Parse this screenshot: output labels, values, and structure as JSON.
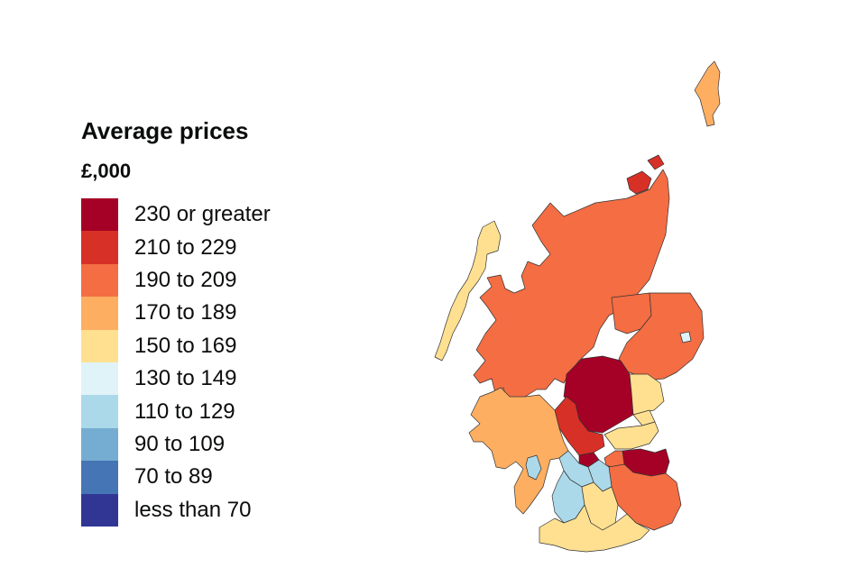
{
  "legend": {
    "title": "Average prices",
    "unit": "£,000",
    "items": [
      {
        "label": "230 or greater",
        "color": "#a50026"
      },
      {
        "label": "210 to 229",
        "color": "#d73027"
      },
      {
        "label": "190 to 209",
        "color": "#f46d43"
      },
      {
        "label": "170 to 189",
        "color": "#fdae61"
      },
      {
        "label": "150 to 169",
        "color": "#fee090"
      },
      {
        "label": "130 to 149",
        "color": "#e0f3f8"
      },
      {
        "label": "110 to 129",
        "color": "#abd9e9"
      },
      {
        "label": "90 to 109",
        "color": "#74add1"
      },
      {
        "label": "70 to 89",
        "color": "#4575b4"
      },
      {
        "label": "less than 70",
        "color": "#313695"
      }
    ]
  },
  "map": {
    "regions": [
      {
        "name": "highland",
        "band": 2
      },
      {
        "name": "shetland",
        "band": 3
      },
      {
        "name": "orkney",
        "band": 1
      },
      {
        "name": "western-isles",
        "band": 4
      },
      {
        "name": "moray",
        "band": 2
      },
      {
        "name": "aberdeenshire",
        "band": 2
      },
      {
        "name": "aberdeen-city",
        "band": 5
      },
      {
        "name": "perth-kinross",
        "band": 0
      },
      {
        "name": "angus",
        "band": 4
      },
      {
        "name": "dundee",
        "band": 4
      },
      {
        "name": "fife",
        "band": 4
      },
      {
        "name": "stirling",
        "band": 1
      },
      {
        "name": "argyll-bute",
        "band": 3
      },
      {
        "name": "glasgow",
        "band": 6
      },
      {
        "name": "east-dunbartonshire",
        "band": 0
      },
      {
        "name": "edinburgh",
        "band": 0
      },
      {
        "name": "east-lothian",
        "band": 2
      },
      {
        "name": "scottish-borders",
        "band": 2
      },
      {
        "name": "south-lanarkshire",
        "band": 4
      },
      {
        "name": "north-lanarkshire",
        "band": 6
      },
      {
        "name": "ayrshire",
        "band": 6
      },
      {
        "name": "dumfries-galloway",
        "band": 4
      },
      {
        "name": "arran",
        "band": 6
      }
    ]
  }
}
